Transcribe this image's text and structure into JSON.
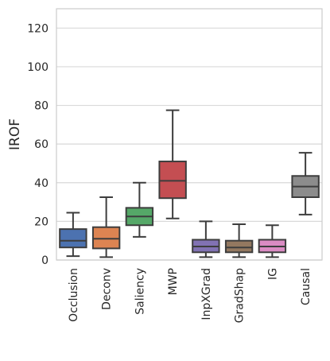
{
  "chart_data": {
    "type": "box",
    "title": "",
    "xlabel": "",
    "ylabel": "IROF",
    "ylim": [
      0,
      130
    ],
    "yticks": [
      0,
      20,
      40,
      60,
      80,
      100,
      120
    ],
    "grid": true,
    "categories": [
      "Occlusion",
      "Deconv",
      "Saliency",
      "MWP",
      "InpXGrad",
      "GradShap",
      "IG",
      "Causal"
    ],
    "colors": [
      "#4c72b0",
      "#dd8452",
      "#55a868",
      "#c44e52",
      "#8172b3",
      "#937860",
      "#da8bc3",
      "#8c8c8c"
    ],
    "boxes": [
      {
        "whisker_low": 2,
        "q1": 6.5,
        "median": 10,
        "q3": 16,
        "whisker_high": 24.5
      },
      {
        "whisker_low": 1.5,
        "q1": 6,
        "median": 11,
        "q3": 17,
        "whisker_high": 32.5
      },
      {
        "whisker_low": 12,
        "q1": 18,
        "median": 22.5,
        "q3": 27,
        "whisker_high": 40
      },
      {
        "whisker_low": 21.5,
        "q1": 32,
        "median": 41,
        "q3": 51,
        "whisker_high": 77.5
      },
      {
        "whisker_low": 1.5,
        "q1": 4,
        "median": 7,
        "q3": 10.5,
        "whisker_high": 20
      },
      {
        "whisker_low": 1.5,
        "q1": 4,
        "median": 6.5,
        "q3": 10,
        "whisker_high": 18.5
      },
      {
        "whisker_low": 1.5,
        "q1": 4,
        "median": 7,
        "q3": 10.5,
        "whisker_high": 18
      },
      {
        "whisker_low": 23.5,
        "q1": 32.5,
        "median": 38,
        "q3": 43.5,
        "whisker_high": 55.5
      }
    ]
  }
}
